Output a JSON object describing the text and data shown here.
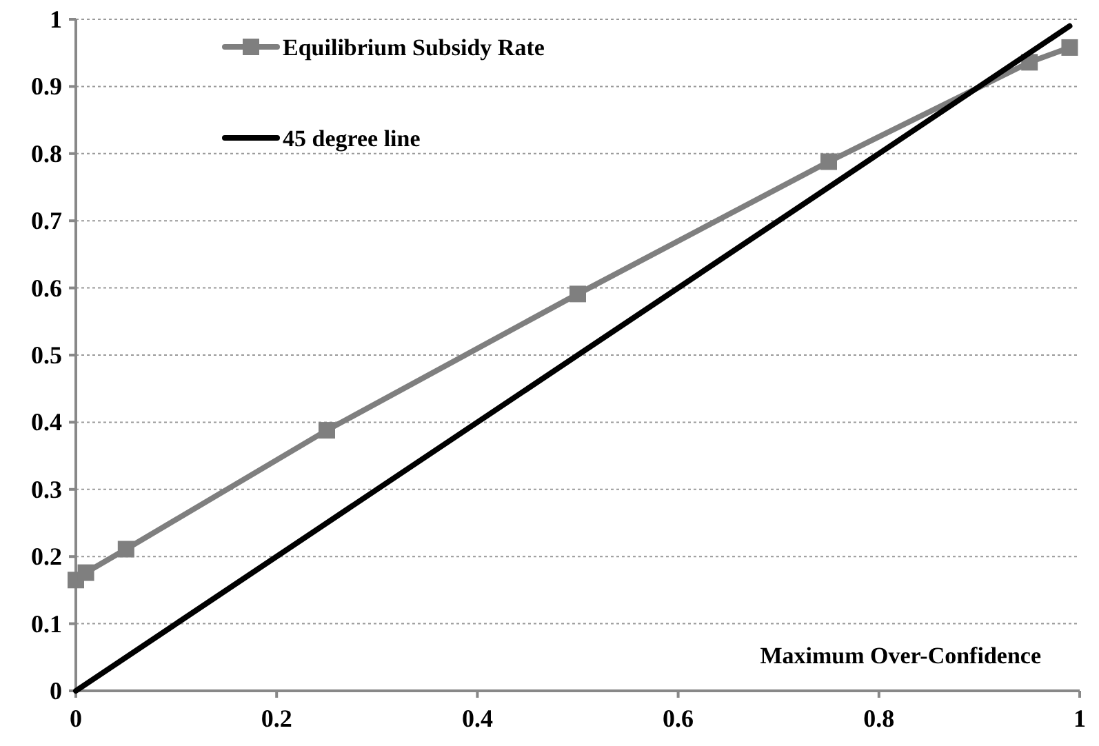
{
  "chart_data": {
    "type": "line",
    "xlabel": "Maximum Over-Confidence",
    "xlim": [
      0,
      1
    ],
    "xticks": [
      0,
      0.2,
      0.4,
      0.6,
      0.8,
      1
    ],
    "ylim": [
      0,
      1
    ],
    "yticks": [
      0,
      0.1,
      0.2,
      0.3,
      0.4,
      0.5,
      0.6,
      0.7,
      0.8,
      0.9,
      1
    ],
    "grid": "y",
    "legend": "top left",
    "series": [
      {
        "name": "Equilibrium Subsidy Rate",
        "color": "#7f7f7f",
        "marker": "square",
        "x": [
          0,
          0.01,
          0.05,
          0.25,
          0.5,
          0.75,
          0.95,
          0.99
        ],
        "values": [
          0.165,
          0.176,
          0.211,
          0.388,
          0.591,
          0.788,
          0.936,
          0.958
        ]
      },
      {
        "name": "45 degree line",
        "color": "#000000",
        "marker": "none",
        "x": [
          0,
          0.99
        ],
        "values": [
          0,
          0.99
        ]
      }
    ]
  }
}
